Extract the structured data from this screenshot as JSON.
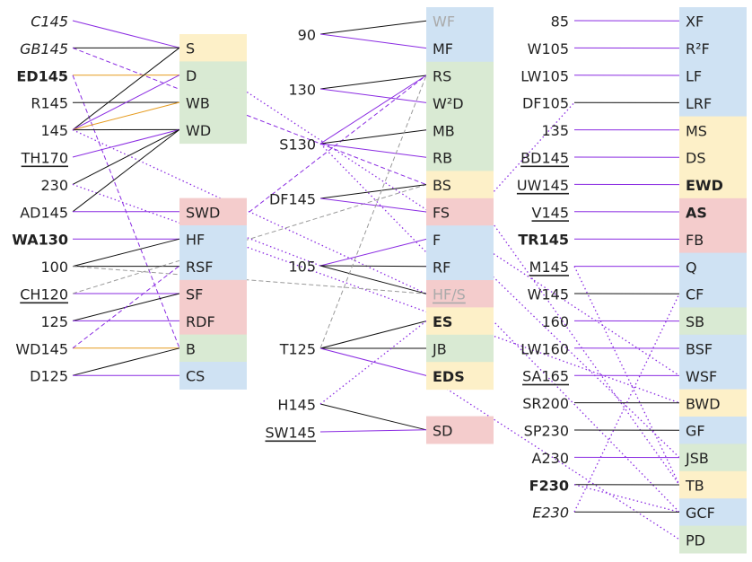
{
  "colors": {
    "yellow": "#fdf0c8",
    "green": "#d9ead3",
    "blue": "#cfe2f3",
    "red": "#f4cccc",
    "black": "#111111",
    "purple": "#8a2be2",
    "orange": "#e69b1e",
    "gray": "#9a9a9a"
  },
  "columns": [
    {
      "id": "c1",
      "boxes": [
        {
          "id": "S",
          "text": "S",
          "fill": "yellow"
        },
        {
          "id": "D",
          "text": "D",
          "fill": "green"
        },
        {
          "id": "WB",
          "text": "WB",
          "fill": "green"
        },
        {
          "id": "WD",
          "text": "WD",
          "fill": "green"
        },
        {
          "id": "SWD",
          "text": "SWD",
          "fill": "red"
        },
        {
          "id": "HF",
          "text": "HF",
          "fill": "blue"
        },
        {
          "id": "RSF",
          "text": "RSF",
          "fill": "blue"
        },
        {
          "id": "SF",
          "text": "SF",
          "fill": "red"
        },
        {
          "id": "RDF",
          "text": "RDF",
          "fill": "red"
        },
        {
          "id": "B",
          "text": "B",
          "fill": "green"
        },
        {
          "id": "CS",
          "text": "CS",
          "fill": "blue"
        }
      ],
      "labels": [
        {
          "id": "C145",
          "text": "C145",
          "style": "italic"
        },
        {
          "id": "GB145",
          "text": "GB145",
          "style": "italic"
        },
        {
          "id": "ED145",
          "text": "ED145",
          "style": "bold"
        },
        {
          "id": "R145",
          "text": "R145",
          "style": ""
        },
        {
          "id": "145",
          "text": "145",
          "style": ""
        },
        {
          "id": "TH170",
          "text": "TH170",
          "style": "underline"
        },
        {
          "id": "230",
          "text": "230",
          "style": ""
        },
        {
          "id": "AD145",
          "text": "AD145",
          "style": ""
        },
        {
          "id": "WA130",
          "text": "WA130",
          "style": "bold"
        },
        {
          "id": "100",
          "text": "100",
          "style": ""
        },
        {
          "id": "CH120",
          "text": "CH120",
          "style": "underline"
        },
        {
          "id": "125",
          "text": "125",
          "style": ""
        },
        {
          "id": "WD145",
          "text": "WD145",
          "style": ""
        },
        {
          "id": "D125",
          "text": "D125",
          "style": ""
        }
      ]
    },
    {
      "id": "c2",
      "boxes": [
        {
          "id": "WF",
          "text": "WF",
          "fill": "blue",
          "style": "muted"
        },
        {
          "id": "MF",
          "text": "MF",
          "fill": "blue"
        },
        {
          "id": "RS",
          "text": "RS",
          "fill": "green"
        },
        {
          "id": "W2D",
          "text": "W²D",
          "fill": "green"
        },
        {
          "id": "MB",
          "text": "MB",
          "fill": "green"
        },
        {
          "id": "RB",
          "text": "RB",
          "fill": "green"
        },
        {
          "id": "BS",
          "text": "BS",
          "fill": "yellow"
        },
        {
          "id": "FS",
          "text": "FS",
          "fill": "red"
        },
        {
          "id": "F",
          "text": "F",
          "fill": "blue"
        },
        {
          "id": "RF",
          "text": "RF",
          "fill": "blue"
        },
        {
          "id": "HFS",
          "text": "HF/S",
          "fill": "red",
          "style": "muted-underline"
        },
        {
          "id": "ES",
          "text": "ES",
          "fill": "yellow",
          "style": "bold"
        },
        {
          "id": "JB",
          "text": "JB",
          "fill": "green"
        },
        {
          "id": "EDS",
          "text": "EDS",
          "fill": "yellow",
          "style": "bold"
        },
        {
          "id": "SD",
          "text": "SD",
          "fill": "red"
        }
      ],
      "labels": [
        {
          "id": "90",
          "text": "90",
          "style": ""
        },
        {
          "id": "130",
          "text": "130",
          "style": ""
        },
        {
          "id": "S130",
          "text": "S130",
          "style": ""
        },
        {
          "id": "DF145",
          "text": "DF145",
          "style": ""
        },
        {
          "id": "105",
          "text": "105",
          "style": ""
        },
        {
          "id": "T125",
          "text": "T125",
          "style": ""
        },
        {
          "id": "H145",
          "text": "H145",
          "style": ""
        },
        {
          "id": "SW145",
          "text": "SW145",
          "style": "underline"
        }
      ]
    },
    {
      "id": "c3",
      "boxes": [
        {
          "id": "XF",
          "text": "XF",
          "fill": "blue"
        },
        {
          "id": "R2F",
          "text": "R²F",
          "fill": "blue"
        },
        {
          "id": "LF",
          "text": "LF",
          "fill": "blue"
        },
        {
          "id": "LRF",
          "text": "LRF",
          "fill": "blue"
        },
        {
          "id": "MS",
          "text": "MS",
          "fill": "yellow"
        },
        {
          "id": "DS",
          "text": "DS",
          "fill": "yellow"
        },
        {
          "id": "EWD",
          "text": "EWD",
          "fill": "yellow",
          "style": "bold"
        },
        {
          "id": "AS",
          "text": "AS",
          "fill": "red",
          "style": "bold"
        },
        {
          "id": "FB",
          "text": "FB",
          "fill": "red"
        },
        {
          "id": "Q",
          "text": "Q",
          "fill": "blue"
        },
        {
          "id": "CF",
          "text": "CF",
          "fill": "blue"
        },
        {
          "id": "SB",
          "text": "SB",
          "fill": "green"
        },
        {
          "id": "BSF",
          "text": "BSF",
          "fill": "blue"
        },
        {
          "id": "WSF",
          "text": "WSF",
          "fill": "blue"
        },
        {
          "id": "BWD",
          "text": "BWD",
          "fill": "yellow"
        },
        {
          "id": "GF",
          "text": "GF",
          "fill": "blue"
        },
        {
          "id": "JSB",
          "text": "JSB",
          "fill": "green"
        },
        {
          "id": "TB",
          "text": "TB",
          "fill": "yellow"
        },
        {
          "id": "GCF",
          "text": "GCF",
          "fill": "blue"
        },
        {
          "id": "PD",
          "text": "PD",
          "fill": "green"
        }
      ],
      "labels": [
        {
          "id": "85",
          "text": "85",
          "style": ""
        },
        {
          "id": "W105",
          "text": "W105",
          "style": ""
        },
        {
          "id": "LW105",
          "text": "LW105",
          "style": ""
        },
        {
          "id": "DF105",
          "text": "DF105",
          "style": ""
        },
        {
          "id": "135",
          "text": "135",
          "style": ""
        },
        {
          "id": "BD145",
          "text": "BD145",
          "style": "underline"
        },
        {
          "id": "UW145",
          "text": "UW145",
          "style": "underline"
        },
        {
          "id": "V145",
          "text": "V145",
          "style": "underline"
        },
        {
          "id": "TR145",
          "text": "TR145",
          "style": "bold"
        },
        {
          "id": "M145",
          "text": "M145",
          "style": "underline"
        },
        {
          "id": "W145",
          "text": "W145",
          "style": ""
        },
        {
          "id": "160",
          "text": "160",
          "style": ""
        },
        {
          "id": "LW160",
          "text": "LW160",
          "style": ""
        },
        {
          "id": "SA165",
          "text": "SA165",
          "style": "underline"
        },
        {
          "id": "SR200",
          "text": "SR200",
          "style": ""
        },
        {
          "id": "SP230",
          "text": "SP230",
          "style": ""
        },
        {
          "id": "A230",
          "text": "A230",
          "style": ""
        },
        {
          "id": "F230",
          "text": "F230",
          "style": "bold"
        },
        {
          "id": "E230",
          "text": "E230",
          "style": "italic"
        }
      ]
    }
  ],
  "links": [
    {
      "from": "C145",
      "to": "S",
      "color": "purple",
      "dash": "solid"
    },
    {
      "from": "GB145",
      "to": "S",
      "color": "black",
      "dash": "solid"
    },
    {
      "from": "GB145",
      "to": "BS",
      "color": "purple",
      "dash": "dashed"
    },
    {
      "from": "ED145",
      "to": "D",
      "color": "orange",
      "dash": "solid"
    },
    {
      "from": "ED145",
      "to": "B",
      "color": "purple",
      "dash": "dashed"
    },
    {
      "from": "R145",
      "to": "WB",
      "color": "black",
      "dash": "solid"
    },
    {
      "from": "145",
      "to": "S",
      "color": "black",
      "dash": "solid"
    },
    {
      "from": "145",
      "to": "D",
      "color": "purple",
      "dash": "solid"
    },
    {
      "from": "145",
      "to": "WB",
      "color": "orange",
      "dash": "solid"
    },
    {
      "from": "145",
      "to": "WD",
      "color": "black",
      "dash": "solid"
    },
    {
      "from": "145",
      "to": "HFS",
      "color": "purple",
      "dash": "dotted"
    },
    {
      "from": "TH170",
      "to": "WD",
      "color": "purple",
      "dash": "solid"
    },
    {
      "from": "230",
      "to": "WD",
      "color": "black",
      "dash": "solid"
    },
    {
      "from": "230",
      "to": "BWD",
      "color": "purple",
      "dash": "dotted"
    },
    {
      "from": "AD145",
      "to": "WD",
      "color": "black",
      "dash": "solid"
    },
    {
      "from": "AD145",
      "to": "SWD",
      "color": "purple",
      "dash": "solid"
    },
    {
      "from": "WA130",
      "to": "HF",
      "color": "purple",
      "dash": "solid"
    },
    {
      "from": "100",
      "to": "HF",
      "color": "black",
      "dash": "solid"
    },
    {
      "from": "100",
      "to": "RSF",
      "color": "black",
      "dash": "solid"
    },
    {
      "from": "100",
      "to": "HFS",
      "color": "gray",
      "dash": "dashed"
    },
    {
      "from": "CH120",
      "to": "SF",
      "color": "purple",
      "dash": "solid"
    },
    {
      "from": "CH120",
      "to": "BS",
      "color": "gray",
      "dash": "dashed"
    },
    {
      "from": "125",
      "to": "SF",
      "color": "black",
      "dash": "solid"
    },
    {
      "from": "125",
      "to": "RDF",
      "color": "purple",
      "dash": "solid"
    },
    {
      "from": "WD145",
      "to": "B",
      "color": "orange",
      "dash": "solid"
    },
    {
      "from": "WD145",
      "to": "RS",
      "color": "purple",
      "dash": "dashed"
    },
    {
      "from": "D125",
      "to": "B",
      "color": "black",
      "dash": "solid"
    },
    {
      "from": "D125",
      "to": "CS",
      "color": "purple",
      "dash": "solid"
    },
    {
      "from": "S",
      "to": "WSF",
      "color": "purple",
      "dash": "dotted"
    },
    {
      "from": "90",
      "to": "WF",
      "color": "black",
      "dash": "solid"
    },
    {
      "from": "90",
      "to": "MF",
      "color": "purple",
      "dash": "solid"
    },
    {
      "from": "130",
      "to": "RS",
      "color": "black",
      "dash": "solid"
    },
    {
      "from": "130",
      "to": "W2D",
      "color": "purple",
      "dash": "solid"
    },
    {
      "from": "S130",
      "to": "MB",
      "color": "black",
      "dash": "solid"
    },
    {
      "from": "S130",
      "to": "RB",
      "color": "purple",
      "dash": "solid"
    },
    {
      "from": "S130",
      "to": "RS",
      "color": "purple",
      "dash": "solid"
    },
    {
      "from": "S130",
      "to": "GCF",
      "color": "purple",
      "dash": "dotted"
    },
    {
      "from": "DF145",
      "to": "BS",
      "color": "black",
      "dash": "solid"
    },
    {
      "from": "DF145",
      "to": "FS",
      "color": "purple",
      "dash": "solid"
    },
    {
      "from": "105",
      "to": "F",
      "color": "purple",
      "dash": "solid"
    },
    {
      "from": "105",
      "to": "RF",
      "color": "black",
      "dash": "solid"
    },
    {
      "from": "105",
      "to": "HFS",
      "color": "black",
      "dash": "solid"
    },
    {
      "from": "105",
      "to": "SWD",
      "color": "purple",
      "dash": "dotted"
    },
    {
      "from": "T125",
      "to": "ES",
      "color": "black",
      "dash": "solid"
    },
    {
      "from": "T125",
      "to": "JB",
      "color": "black",
      "dash": "solid"
    },
    {
      "from": "T125",
      "to": "EDS",
      "color": "purple",
      "dash": "solid"
    },
    {
      "from": "T125",
      "to": "RS",
      "color": "gray",
      "dash": "dashed"
    },
    {
      "from": "H145",
      "to": "SD",
      "color": "black",
      "dash": "solid"
    },
    {
      "from": "H145",
      "to": "ES",
      "color": "purple",
      "dash": "dotted"
    },
    {
      "from": "SW145",
      "to": "SD",
      "color": "purple",
      "dash": "solid"
    },
    {
      "from": "FS",
      "to": "JSB",
      "color": "purple",
      "dash": "dotted"
    },
    {
      "from": "MB",
      "to": "TB",
      "color": "purple",
      "dash": "dotted"
    },
    {
      "from": "RF",
      "to": "DF105",
      "color": "purple",
      "dash": "dotted"
    },
    {
      "from": "EDS",
      "to": "PD",
      "color": "purple",
      "dash": "dotted"
    },
    {
      "from": "85",
      "to": "XF",
      "color": "purple",
      "dash": "solid"
    },
    {
      "from": "W105",
      "to": "R2F",
      "color": "purple",
      "dash": "solid"
    },
    {
      "from": "LW105",
      "to": "LF",
      "color": "purple",
      "dash": "solid"
    },
    {
      "from": "DF105",
      "to": "LRF",
      "color": "black",
      "dash": "solid"
    },
    {
      "from": "135",
      "to": "MS",
      "color": "purple",
      "dash": "solid"
    },
    {
      "from": "BD145",
      "to": "DS",
      "color": "purple",
      "dash": "solid"
    },
    {
      "from": "UW145",
      "to": "EWD",
      "color": "purple",
      "dash": "solid"
    },
    {
      "from": "V145",
      "to": "AS",
      "color": "purple",
      "dash": "solid"
    },
    {
      "from": "TR145",
      "to": "FB",
      "color": "purple",
      "dash": "solid"
    },
    {
      "from": "M145",
      "to": "Q",
      "color": "purple",
      "dash": "solid"
    },
    {
      "from": "M145",
      "to": "TB",
      "color": "purple",
      "dash": "dotted"
    },
    {
      "from": "W145",
      "to": "CF",
      "color": "black",
      "dash": "solid"
    },
    {
      "from": "160",
      "to": "SB",
      "color": "purple",
      "dash": "solid"
    },
    {
      "from": "LW160",
      "to": "BSF",
      "color": "purple",
      "dash": "solid"
    },
    {
      "from": "SA165",
      "to": "WSF",
      "color": "purple",
      "dash": "solid"
    },
    {
      "from": "SR200",
      "to": "BWD",
      "color": "black",
      "dash": "solid"
    },
    {
      "from": "SP230",
      "to": "GF",
      "color": "black",
      "dash": "solid"
    },
    {
      "from": "A230",
      "to": "JSB",
      "color": "purple",
      "dash": "solid"
    },
    {
      "from": "F230",
      "to": "TB",
      "color": "black",
      "dash": "solid"
    },
    {
      "from": "F230",
      "to": "GCF",
      "color": "purple",
      "dash": "dotted"
    },
    {
      "from": "E230",
      "to": "GCF",
      "color": "black",
      "dash": "solid"
    },
    {
      "from": "E230",
      "to": "CF",
      "color": "purple",
      "dash": "dotted"
    }
  ]
}
